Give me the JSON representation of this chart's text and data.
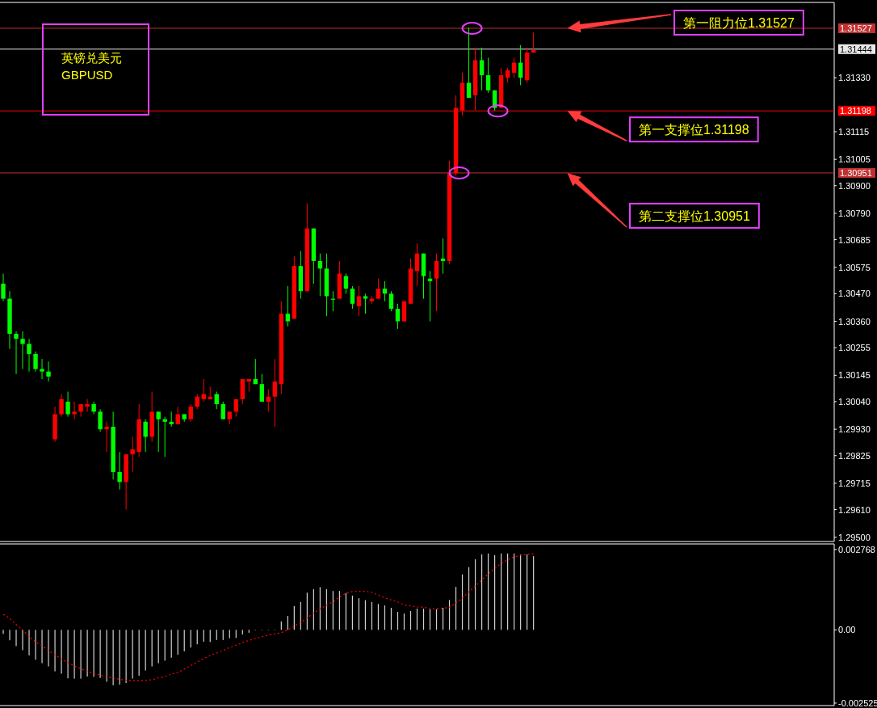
{
  "chart_data": [
    {
      "type": "candlestick",
      "title": "英镑兑美元",
      "subtitle": "GBPUSD",
      "categories": [
        null,
        null,
        null,
        null,
        null,
        null,
        null,
        null,
        null,
        null,
        null,
        null,
        null,
        null,
        null,
        null,
        null,
        null,
        null,
        null,
        null,
        null,
        null,
        null,
        null,
        null,
        null,
        null,
        null,
        null,
        null,
        null,
        null,
        null,
        null,
        null,
        null,
        null,
        null,
        null,
        null,
        null,
        null,
        null,
        null,
        null,
        null,
        null,
        null,
        null,
        null,
        null,
        null,
        null,
        null,
        null,
        null,
        null,
        null,
        null,
        null,
        null,
        null,
        null,
        null,
        null,
        null,
        null,
        null,
        null,
        null,
        null,
        null,
        null,
        null,
        null,
        null,
        null,
        null,
        null,
        null,
        null,
        null,
        null,
        null,
        null,
        null,
        null,
        null,
        null,
        null,
        null,
        null,
        null,
        null,
        null,
        null,
        null,
        null,
        null,
        null,
        null,
        null,
        null,
        null,
        null,
        null,
        null,
        null,
        null,
        null,
        null,
        null,
        null,
        null,
        null,
        null,
        null,
        null,
        null,
        null,
        null,
        null,
        null,
        null,
        null,
        null,
        null,
        null
      ],
      "ohlc": [
        [
          1.3051,
          1.3055,
          1.3044,
          1.3045
        ],
        [
          1.3045,
          1.3048,
          1.3025,
          1.3031
        ],
        [
          1.3031,
          1.3032,
          1.3015,
          1.3029
        ],
        [
          1.3029,
          1.3032,
          1.3017,
          1.3027
        ],
        [
          1.3027,
          1.3029,
          1.3016,
          1.3023
        ],
        [
          1.3023,
          1.3024,
          1.3016,
          1.3017
        ],
        [
          1.3017,
          1.3021,
          1.3013,
          1.3016
        ],
        [
          1.3016,
          1.302,
          1.3012,
          1.3014
        ],
        [
          1.2989,
          1.3002,
          1.2988,
          1.2999
        ],
        [
          1.2999,
          1.3007,
          1.2998,
          1.3005
        ],
        [
          1.3004,
          1.3008,
          1.2998,
          1.2999
        ],
        [
          1.2999,
          1.3004,
          1.2997,
          1.3
        ],
        [
          1.3,
          1.3003,
          1.2998,
          1.3003
        ],
        [
          1.3002,
          1.3005,
          1.3,
          1.3003
        ],
        [
          1.3003,
          1.3004,
          1.2999,
          1.3
        ],
        [
          1.3,
          1.3001,
          1.2992,
          1.2993
        ],
        [
          1.2993,
          1.2996,
          1.2984,
          1.2994
        ],
        [
          1.2994,
          1.3,
          1.2973,
          1.2976
        ],
        [
          1.2976,
          1.2984,
          1.2969,
          1.2972
        ],
        [
          1.2972,
          1.2983,
          1.2961,
          1.2983
        ],
        [
          1.2983,
          1.299,
          1.2976,
          1.2985
        ],
        [
          1.2984,
          1.3003,
          1.2982,
          1.2997
        ],
        [
          1.2996,
          1.2997,
          1.2984,
          1.299
        ],
        [
          1.299,
          1.3008,
          1.2988,
          1.3
        ],
        [
          1.3,
          1.3,
          1.2984,
          1.2997
        ],
        [
          1.2997,
          1.2998,
          1.2982,
          1.2996
        ],
        [
          1.2996,
          1.3,
          1.2994,
          1.2995
        ],
        [
          1.2995,
          1.3002,
          1.2995,
          1.2999
        ],
        [
          1.2999,
          1.2999,
          1.2996,
          1.2997
        ],
        [
          1.2997,
          1.3003,
          1.2996,
          1.3002
        ],
        [
          1.3002,
          1.3007,
          1.3001,
          1.3006
        ],
        [
          1.3005,
          1.3013,
          1.3004,
          1.3007
        ],
        [
          1.3005,
          1.301,
          1.3005,
          1.3006
        ],
        [
          1.3007,
          1.3008,
          1.3001,
          1.3003
        ],
        [
          1.3003,
          1.3004,
          1.2997,
          1.2997
        ],
        [
          1.2997,
          1.3,
          1.2995,
          1.3
        ],
        [
          1.3,
          1.3005,
          1.2998,
          1.3005
        ],
        [
          1.3005,
          1.3013,
          1.3003,
          1.3013
        ],
        [
          1.3012,
          1.3013,
          1.3008,
          1.3013
        ],
        [
          1.3013,
          1.3021,
          1.3011,
          1.3011
        ],
        [
          1.3011,
          1.3015,
          1.3004,
          1.3004
        ],
        [
          1.3004,
          1.3009,
          1.3,
          1.3006
        ],
        [
          1.3006,
          1.3021,
          1.2994,
          1.3012
        ],
        [
          1.3011,
          1.3044,
          1.3007,
          1.3039
        ],
        [
          1.3039,
          1.305,
          1.3034,
          1.3036
        ],
        [
          1.3037,
          1.3062,
          1.3037,
          1.3058
        ],
        [
          1.3058,
          1.3064,
          1.3045,
          1.3048
        ],
        [
          1.3048,
          1.3083,
          1.3048,
          1.3073
        ],
        [
          1.3073,
          1.3073,
          1.3051,
          1.306
        ],
        [
          1.306,
          1.3063,
          1.3046,
          1.3057
        ],
        [
          1.3057,
          1.3063,
          1.3038,
          1.3046
        ],
        [
          1.3045,
          1.3048,
          1.304,
          1.3045
        ],
        [
          1.3045,
          1.306,
          1.3045,
          1.3055
        ],
        [
          1.3054,
          1.3055,
          1.3047,
          1.3049
        ],
        [
          1.3049,
          1.305,
          1.3041,
          1.3043
        ],
        [
          1.3042,
          1.305,
          1.3038,
          1.3046
        ],
        [
          1.3046,
          1.3047,
          1.3039,
          1.3045
        ],
        [
          1.3044,
          1.3046,
          1.3043,
          1.3045
        ],
        [
          1.3045,
          1.3053,
          1.3045,
          1.3049
        ],
        [
          1.3049,
          1.3052,
          1.3044,
          1.3047
        ],
        [
          1.3047,
          1.3048,
          1.304,
          1.3041
        ],
        [
          1.3041,
          1.3043,
          1.3033,
          1.3036
        ],
        [
          1.3036,
          1.3044,
          1.3036,
          1.3044
        ],
        [
          1.3043,
          1.3061,
          1.3043,
          1.3057
        ],
        [
          1.3056,
          1.3067,
          1.305,
          1.3063
        ],
        [
          1.3063,
          1.3063,
          1.3045,
          1.3054
        ],
        [
          1.3053,
          1.3056,
          1.3036,
          1.3052
        ],
        [
          1.3053,
          1.3063,
          1.304,
          1.306
        ],
        [
          1.3061,
          1.3069,
          1.3055,
          1.306
        ],
        [
          1.306,
          1.31,
          1.3059,
          1.3095
        ],
        [
          1.3095,
          1.3126,
          1.3094,
          1.3121
        ],
        [
          1.312,
          1.3135,
          1.3118,
          1.3131
        ],
        [
          1.3131,
          1.3153,
          1.3125,
          1.3125
        ],
        [
          1.3126,
          1.3145,
          1.312,
          1.314
        ],
        [
          1.314,
          1.3145,
          1.3128,
          1.3134
        ],
        [
          1.3134,
          1.3141,
          1.3127,
          1.3128
        ],
        [
          1.3128,
          1.3128,
          1.312,
          1.3121
        ],
        [
          1.3121,
          1.3137,
          1.3121,
          1.3134
        ],
        [
          1.3133,
          1.3137,
          1.3131,
          1.3136
        ],
        [
          1.3135,
          1.3141,
          1.3133,
          1.3139
        ],
        [
          1.3139,
          1.3146,
          1.313,
          1.3133
        ],
        [
          1.3132,
          1.3145,
          1.3131,
          1.3143
        ],
        [
          1.3143,
          1.3151,
          1.3143,
          1.3144
        ],
        null,
        null,
        null,
        null,
        null,
        null,
        null,
        null,
        null,
        null,
        null,
        null,
        null,
        null,
        null,
        null,
        null,
        null,
        null,
        null,
        null,
        null,
        null,
        null,
        null,
        null,
        null,
        null,
        null,
        null,
        null,
        null,
        null,
        null,
        null,
        null,
        null,
        null,
        null,
        null,
        null,
        null,
        null,
        null,
        null,
        null
      ],
      "colors": [
        "#00ff00",
        "#00ff00",
        "#00ff00",
        "#00ff00",
        "#00ff00",
        "#00ff00",
        "#00ff00",
        "#00ff00",
        "#ff0000",
        "#ff0000",
        "#00ff00",
        "#ff0000",
        "#ff0000",
        "#ff0000",
        "#00ff00",
        "#00ff00",
        "#ff0000",
        "#00ff00",
        "#00ff00",
        "#ff0000",
        "#ff0000",
        "#ff0000",
        "#00ff00",
        "#ff0000",
        "#00ff00",
        "#00ff00",
        "#00ff00",
        "#ff0000",
        "#00ff00",
        "#ff0000",
        "#ff0000",
        "#ff0000",
        "#ff0000",
        "#00ff00",
        "#00ff00",
        "#ff0000",
        "#ff0000",
        "#ff0000",
        "#ff0000",
        "#00ff00",
        "#00ff00",
        "#ff0000",
        "#ff0000",
        "#ff0000",
        "#00ff00",
        "#ff0000",
        "#00ff00",
        "#ff0000",
        "#00ff00",
        "#00ff00",
        "#00ff00",
        "#00ff00",
        "#ff0000",
        "#00ff00",
        "#00ff00",
        "#ff0000",
        "#00ff00",
        "#ff0000",
        "#ff0000",
        "#00ff00",
        "#00ff00",
        "#00ff00",
        "#ff0000",
        "#ff0000",
        "#ff0000",
        "#00ff00",
        "#00ff00",
        "#ff0000",
        "#00ff00",
        "#ff0000",
        "#ff0000",
        "#ff0000",
        "#00ff00",
        "#ff0000",
        "#00ff00",
        "#00ff00",
        "#00ff00",
        "#ff0000",
        "#ff0000",
        "#ff0000",
        "#00ff00",
        "#ff0000",
        "#ff0000",
        null,
        null,
        null,
        null,
        null,
        null,
        null,
        null,
        null,
        null,
        null,
        null,
        null,
        null,
        null,
        null,
        null,
        null,
        null,
        null,
        null,
        null,
        null,
        null,
        null,
        null,
        null,
        null,
        null,
        null,
        null,
        null,
        null,
        null,
        null,
        null,
        null,
        null,
        null,
        null,
        null,
        null,
        null,
        null,
        null,
        null
      ],
      "ylim": [
        1.29483,
        1.3163
      ],
      "yticks": [
        {
          "value": 1.295,
          "label": "1.29500"
        },
        {
          "value": 1.2961,
          "label": "1.29610"
        },
        {
          "value": 1.29715,
          "label": "1.29715"
        },
        {
          "value": 1.29825,
          "label": "1.29825"
        },
        {
          "value": 1.2993,
          "label": "1.29930"
        },
        {
          "value": 1.3004,
          "label": "1.30040"
        },
        {
          "value": 1.30145,
          "label": "1.30145"
        },
        {
          "value": 1.30255,
          "label": "1.30255"
        },
        {
          "value": 1.3036,
          "label": "1.30360"
        },
        {
          "value": 1.3047,
          "label": "1.30470"
        },
        {
          "value": 1.30575,
          "label": "1.30575"
        },
        {
          "value": 1.30685,
          "label": "1.30685"
        },
        {
          "value": 1.3079,
          "label": "1.30790"
        },
        {
          "value": 1.309,
          "label": "1.30900"
        },
        {
          "value": 1.31005,
          "label": "1.31005"
        },
        {
          "value": 1.31115,
          "label": "1.31115"
        },
        {
          "value": 1.3133,
          "label": "1.31330"
        }
      ],
      "tick_labels": "y",
      "ref_lines": [
        {
          "axis": "y",
          "value": 1.31527,
          "label": "1.31527",
          "color": "#c03030"
        },
        {
          "axis": "y",
          "value": 1.31444,
          "label": "1.31444",
          "color": "#e8e8e8"
        },
        {
          "axis": "y",
          "value": 1.31198,
          "label": "1.31198",
          "color": "#ff0000"
        },
        {
          "axis": "y",
          "value": 1.30951,
          "label": "1.30951",
          "color": "#c03030"
        }
      ],
      "annotations": [
        {
          "text": "第一阻力位1.31527",
          "y": 1.31527
        },
        {
          "text": "第一支撑位1.31198",
          "y": 1.31198
        },
        {
          "text": "第二支撑位1.30951",
          "y": 1.30951
        }
      ]
    },
    {
      "type": "bar",
      "categories": [
        null,
        null,
        null,
        null,
        null,
        null,
        null,
        null,
        null,
        null,
        null,
        null,
        null,
        null,
        null,
        null,
        null,
        null,
        null,
        null,
        null,
        null,
        null,
        null,
        null,
        null,
        null,
        null,
        null,
        null,
        null,
        null,
        null,
        null,
        null,
        null,
        null,
        null,
        null,
        null,
        null,
        null,
        null,
        null,
        null,
        null,
        null,
        null,
        null,
        null,
        null,
        null,
        null,
        null,
        null,
        null,
        null,
        null,
        null,
        null,
        null,
        null,
        null,
        null,
        null,
        null,
        null,
        null,
        null,
        null,
        null,
        null,
        null,
        null,
        null,
        null,
        null,
        null,
        null,
        null,
        null,
        null,
        null,
        null,
        null,
        null,
        null,
        null,
        null,
        null,
        null,
        null,
        null,
        null,
        null,
        null,
        null,
        null,
        null,
        null,
        null,
        null,
        null,
        null,
        null,
        null,
        null,
        null,
        null,
        null,
        null,
        null,
        null,
        null,
        null,
        null,
        null,
        null,
        null,
        null,
        null,
        null,
        null,
        null,
        null,
        null,
        null,
        null,
        null
      ],
      "series": [
        {
          "type": "bar",
          "color": "#d0d0d0",
          "values": [
            -0.00014,
            -0.00036,
            -0.00056,
            -0.0007,
            -0.00088,
            -0.00103,
            -0.00115,
            -0.00126,
            -0.00143,
            -0.00151,
            -0.00167,
            -0.00168,
            -0.00168,
            -0.00161,
            -0.00162,
            -0.00166,
            -0.00179,
            -0.00191,
            -0.00189,
            -0.00183,
            -0.00168,
            -0.00158,
            -0.0014,
            -0.00126,
            -0.00115,
            -0.00106,
            -0.00096,
            -0.00086,
            -0.00074,
            -0.00061,
            -0.0005,
            -0.00041,
            -0.00042,
            -0.00035,
            -0.00035,
            -0.00029,
            -0.00028,
            -0.00016,
            -0.0001,
            0,
            0,
            0,
            0,
            0.00029,
            0.00048,
            0.00082,
            0.00096,
            0.00128,
            0.0014,
            0.00147,
            0.0014,
            0.00134,
            0.00134,
            0.00127,
            0.00118,
            0.00109,
            0.00102,
            0.00096,
            0.00089,
            0.00084,
            0.00076,
            0.00062,
            0.00056,
            0.00065,
            0.00073,
            0.00073,
            0.00071,
            0.00071,
            0.00076,
            0.00103,
            0.00148,
            0.00191,
            0.00216,
            0.00243,
            0.0026,
            0.00263,
            0.00257,
            0.00263,
            0.00263,
            0.00263,
            0.0026,
            0.0026,
            0.00254,
            null,
            null,
            null,
            null,
            null,
            null,
            null,
            null,
            null,
            null,
            null,
            null,
            null,
            null,
            null,
            null,
            null,
            null,
            null,
            null,
            null,
            null,
            null,
            null,
            null,
            null,
            null,
            null,
            null,
            null,
            null,
            null,
            null,
            null,
            null,
            null,
            null,
            null,
            null,
            null,
            null,
            null,
            null,
            null,
            null,
            null
          ]
        },
        {
          "type": "line",
          "color": "#ff0000",
          "line_style": "dotted",
          "values": [
            0.00053,
            0.0004,
            0.00018,
            0,
            -0.00023,
            -0.00041,
            -0.00055,
            -0.00071,
            -0.00086,
            -0.00101,
            -0.00113,
            -0.00125,
            -0.00134,
            -0.00143,
            -0.0015,
            -0.00156,
            -0.00162,
            -0.00166,
            -0.0017,
            -0.00174,
            -0.00175,
            -0.00175,
            -0.00175,
            -0.00172,
            -0.00165,
            -0.00162,
            -0.00152,
            -0.00147,
            -0.00135,
            -0.00123,
            -0.00111,
            -0.00099,
            -0.00089,
            -0.0008,
            -0.00071,
            -0.00061,
            -0.00053,
            -0.00044,
            -0.00036,
            -0.0003,
            -0.00024,
            -0.00018,
            -0.00014,
            -0.0001,
            0,
            0.00013,
            0.00025,
            0.00041,
            0.00057,
            0.00072,
            0.00085,
            0.00097,
            0.00113,
            0.00126,
            0.00132,
            0.00133,
            0.00133,
            0.00129,
            0.0012,
            0.0011,
            0.00103,
            0.00096,
            0.00086,
            0.00082,
            0.00079,
            0.00078,
            0.00073,
            0.00073,
            0.00074,
            0.00078,
            0.00092,
            0.00109,
            0.00131,
            0.00151,
            0.00171,
            0.00193,
            0.00212,
            0.00229,
            0.00241,
            0.00251,
            0.00257,
            0.0026,
            0.00263,
            null,
            null,
            null,
            null,
            null,
            null,
            null,
            null,
            null,
            null,
            null,
            null,
            null,
            null,
            null,
            null,
            null,
            null,
            null,
            null,
            null,
            null,
            null,
            null,
            null,
            null,
            null,
            null,
            null,
            null,
            null,
            null,
            null,
            null,
            null,
            null,
            null,
            null,
            null,
            null,
            null,
            null,
            null,
            null,
            null,
            null
          ]
        }
      ],
      "ylim": [
        -0.00261,
        0.00296
      ],
      "yticks": [
        {
          "value": 0.002768,
          "label": "0.002768"
        },
        {
          "value": 0,
          "label": "0.00"
        },
        {
          "value": -0.002525,
          "label": "-0.002525"
        }
      ],
      "tick_labels": "y"
    }
  ]
}
